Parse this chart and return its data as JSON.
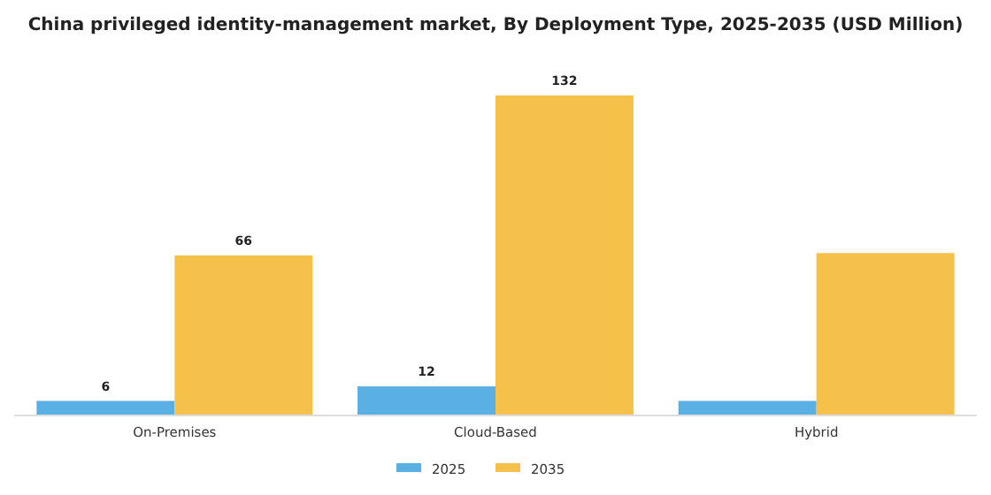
{
  "chart_data": {
    "type": "bar",
    "title": "China privileged identity-management market, By Deployment Type, 2025-2035 (USD Million)",
    "categories": [
      "On-Premises",
      "Cloud-Based",
      "Hybrid"
    ],
    "legend": "bottom",
    "tick_labels": "x",
    "series": [
      {
        "name": "2025",
        "color": "#5aafe3",
        "values": [
          6,
          12,
          6
        ],
        "value_labels": [
          "6",
          "12",
          null
        ]
      },
      {
        "name": "2035",
        "color": "#f6c14b",
        "values": [
          66,
          132,
          67
        ],
        "value_labels": [
          "66",
          "132",
          null
        ]
      }
    ]
  }
}
